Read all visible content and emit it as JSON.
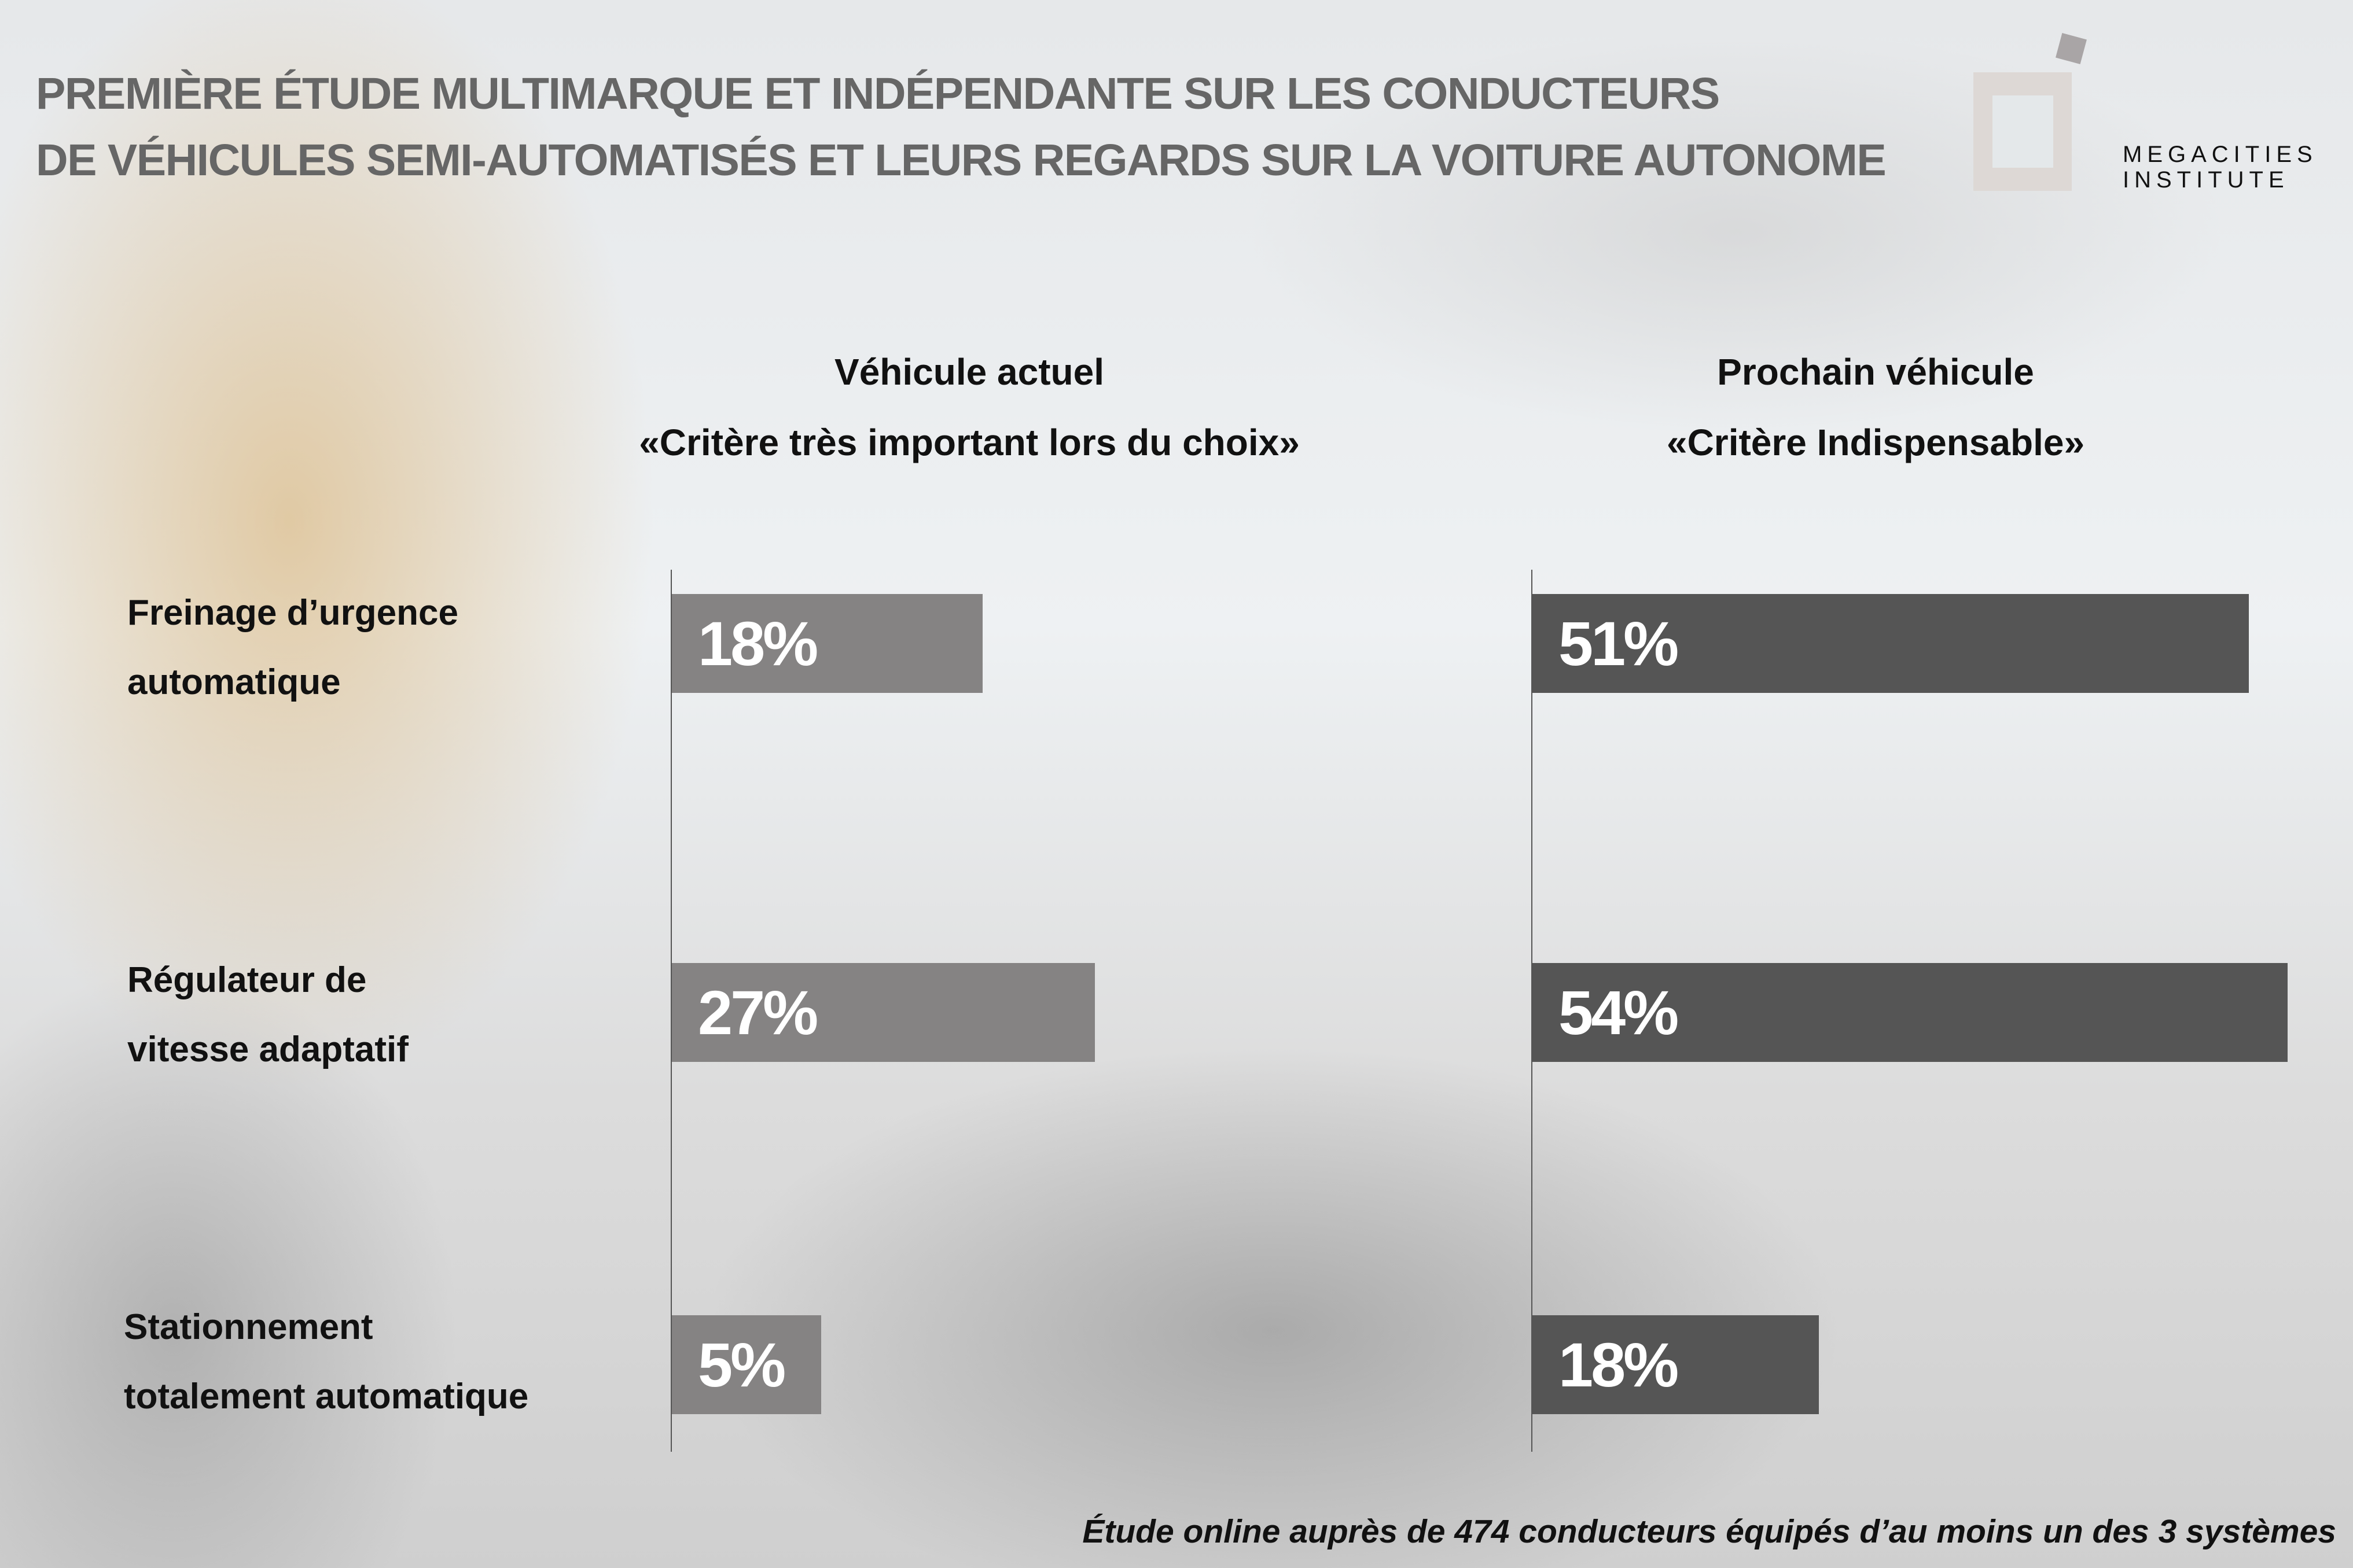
{
  "title": {
    "line1": "PREMIÈRE ÉTUDE MULTIMARQUE ET INDÉPENDANTE SUR LES CONDUCTEURS",
    "line2": "DE VÉHICULES SEMI-AUTOMATISÉS ET LEURS REGARDS SUR LA VOITURE AUTONOME"
  },
  "logo": {
    "line1": "MEGACITIES",
    "line2": "INSTITUTE"
  },
  "footer": "Étude online auprès de 474 conducteurs équipés d’au moins un des 3 systèmes",
  "colors": {
    "current": "#858383",
    "next": "#555555",
    "title": "#666666"
  },
  "chart_data": {
    "type": "bar",
    "orientation": "horizontal",
    "categories": [
      {
        "line1": "Freinage d’urgence",
        "line2": "automatique"
      },
      {
        "line1": "Régulateur de",
        "line2": "vitesse adaptatif"
      },
      {
        "line1": "Stationnement",
        "line2": "totalement automatique"
      }
    ],
    "series": [
      {
        "name": "current",
        "header1": "Véhicule actuel",
        "header2": "«Critère très important lors du choix»",
        "values": [
          18,
          27,
          5
        ],
        "labels": [
          "18%",
          "27%",
          "5%"
        ]
      },
      {
        "name": "next",
        "header1": "Prochain véhicule",
        "header2": "«Critère Indispensable»",
        "values": [
          51,
          54,
          18
        ],
        "labels": [
          "51%",
          "54%",
          "18%"
        ]
      }
    ],
    "unit": "%"
  }
}
